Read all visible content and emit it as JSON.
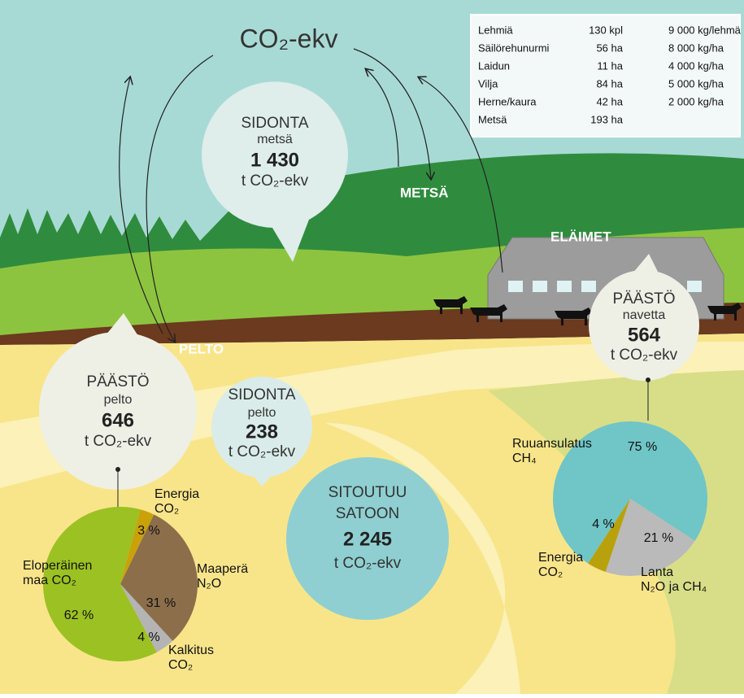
{
  "title": "CO₂-ekv",
  "table": {
    "rows": [
      [
        "Lehmiä",
        "130 kpl",
        "9 000 kg/lehmä"
      ],
      [
        "Säilörehunurmi",
        "56 ha",
        "8 000 kg/ha"
      ],
      [
        "Laidun",
        "11 ha",
        "4 000 kg/ha"
      ],
      [
        "Vilja",
        "84 ha",
        "5 000 kg/ha"
      ],
      [
        "Herne/kaura",
        "42 ha",
        "2 000 kg/ha"
      ],
      [
        "Metsä",
        "193 ha"
      ]
    ]
  },
  "areas": {
    "forest": "METSÄ",
    "animals": "ELÄIMET",
    "field": "PELTO"
  },
  "bubbles": {
    "forest_sink": {
      "kind": "SIDONTA",
      "place": "metsä",
      "value": "1 430",
      "unit": "t CO₂-ekv"
    },
    "field_emission": {
      "kind": "PÄÄSTÖ",
      "place": "pelto",
      "value": "646",
      "unit": "t CO₂-ekv"
    },
    "field_sink": {
      "kind": "SIDONTA",
      "place": "pelto",
      "value": "238",
      "unit": "t CO₂-ekv"
    },
    "harvest": {
      "kind": "SITOUTUU",
      "place": "SATOON",
      "value": "2 245",
      "unit": "t CO₂-ekv"
    },
    "barn_emission": {
      "kind": "PÄÄSTÖ",
      "place": "navetta",
      "value": "564",
      "unit": "t CO₂-ekv"
    }
  },
  "pies": [
    {
      "labels": [
        [
          "Energia",
          "CO₂"
        ],
        [
          "Maaperä",
          "N₂O"
        ],
        [
          "Kalkitus",
          "CO₂"
        ],
        [
          "Eloperäinen",
          "maa CO₂"
        ]
      ],
      "values": [
        3,
        31,
        4,
        62
      ],
      "value_labels": [
        "3 %",
        "31 %",
        "4 %",
        "62 %"
      ],
      "colors": [
        "#c9a20a",
        "#8c6e4b",
        "#b4b4b4",
        "#9cc122"
      ]
    },
    {
      "labels": [
        [
          "Ruuansulatus",
          "CH₄"
        ],
        [
          "Lanta",
          "N₂O ja CH₄"
        ],
        [
          "Energia",
          "CO₂"
        ]
      ],
      "values": [
        75,
        21,
        4
      ],
      "value_labels": [
        "75 %",
        "21 %",
        "4 %"
      ],
      "colors": [
        "#70c5c7",
        "#bababa",
        "#b8a10c"
      ]
    }
  ]
}
